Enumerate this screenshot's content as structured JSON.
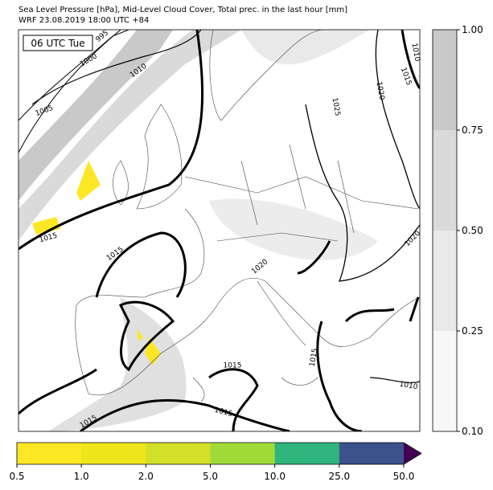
{
  "header": {
    "title_line1": "Sea Level Pressure [hPa], Mid-Level Cloud Cover, Total prec. in the last hour [mm]",
    "title_line2": "WRF 23.08.2019 18:00 UTC +84"
  },
  "map": {
    "time_label": "06 UTC Tue",
    "contour_labels": [
      "995",
      "1000",
      "1005",
      "1010",
      "1015",
      "1015",
      "1020",
      "1025",
      "1015",
      "1010",
      "1020",
      "1020",
      "1015",
      "1015",
      "1015",
      "1015",
      "1010"
    ]
  },
  "cloud_colorbar": {
    "colors": [
      "#f7f7f7",
      "#e9e9e9",
      "#dadada",
      "#c9c9c9"
    ],
    "ticks": [
      {
        "value": 0.1,
        "label": "0.10"
      },
      {
        "value": 0.25,
        "label": "0.25"
      },
      {
        "value": 0.5,
        "label": "0.50"
      },
      {
        "value": 0.75,
        "label": "0.75"
      },
      {
        "value": 1,
        "label": "1.00"
      }
    ]
  },
  "precip_colorbar": {
    "colors": [
      "#fde725",
      "#eee51b",
      "#d3e029",
      "#a0da39",
      "#2fb47c",
      "#3b528b",
      "#440154"
    ],
    "ticks": [
      0.5,
      {
        "value": 1,
        "label": "1.0"
      },
      {
        "value": 2,
        "label": "2.0"
      },
      {
        "value": 5,
        "label": "5.0"
      },
      {
        "value": 10,
        "label": "10.0"
      },
      {
        "value": 25,
        "label": "25.0"
      },
      {
        "value": 50,
        "label": "50.0"
      }
    ]
  }
}
